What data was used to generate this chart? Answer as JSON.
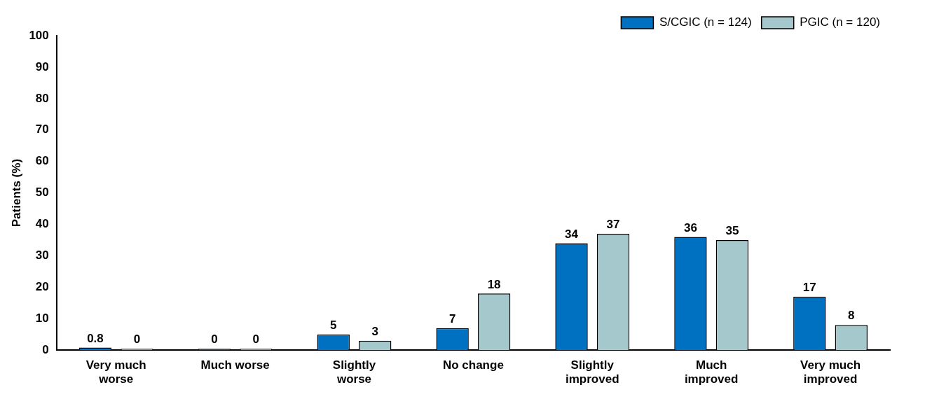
{
  "chart_data": {
    "type": "bar",
    "ylabel": "Patients (%)",
    "categories": [
      "Very much worse",
      "Much worse",
      "Slightly worse",
      "No change",
      "Slightly improved",
      "Much improved",
      "Very much improved"
    ],
    "series": [
      {
        "name": "S/CGIC (n = 124)",
        "color": "#0070c0",
        "values": [
          0.8,
          0,
          5,
          7,
          34,
          36,
          17
        ]
      },
      {
        "name": "PGIC (n = 120)",
        "color": "#a5c8cc",
        "values": [
          0,
          0,
          3,
          18,
          37,
          35,
          8
        ]
      }
    ],
    "ylim": [
      0,
      100
    ],
    "yticks": [
      0,
      10,
      20,
      30,
      40,
      50,
      60,
      70,
      80,
      90,
      100
    ],
    "grid": false,
    "legend": "top right",
    "data_labels": true
  }
}
